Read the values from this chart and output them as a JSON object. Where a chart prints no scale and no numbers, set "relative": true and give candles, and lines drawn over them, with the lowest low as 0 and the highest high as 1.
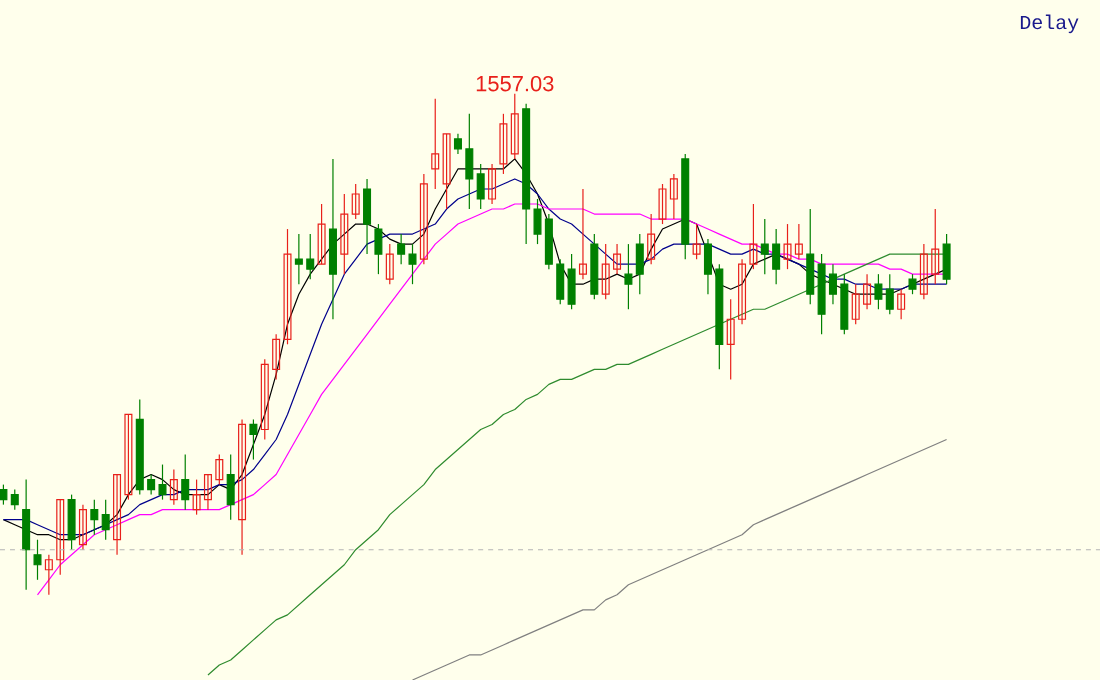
{
  "chart_data": {
    "type": "candlestick",
    "relative": true,
    "categories": [
      null,
      null,
      null,
      null,
      null,
      null,
      null,
      null,
      null,
      null,
      null,
      null,
      null,
      null,
      null,
      null,
      null,
      null,
      null,
      null,
      null,
      null,
      null,
      null,
      null,
      null,
      null,
      null,
      null,
      null,
      null,
      null,
      null,
      null,
      null,
      null,
      null,
      null,
      null,
      null,
      null,
      null,
      null,
      null,
      null,
      null,
      null,
      null,
      null,
      null,
      null,
      null,
      null,
      null,
      null,
      null,
      null,
      null,
      null,
      null,
      null,
      null,
      null,
      null,
      null,
      null,
      null,
      null,
      null,
      null,
      null,
      null,
      null,
      null,
      null,
      null,
      null,
      null,
      null,
      null,
      null,
      null,
      null,
      null
    ],
    "ohlc": [
      [
        0.21,
        0.22,
        0.18,
        0.19
      ],
      [
        0.2,
        0.21,
        0.17,
        0.18
      ],
      [
        0.17,
        0.23,
        0.01,
        0.09
      ],
      [
        0.08,
        0.11,
        0.03,
        0.06
      ],
      [
        0.05,
        0.08,
        0,
        0.07
      ],
      [
        0.07,
        0.19,
        0.04,
        0.19
      ],
      [
        0.19,
        0.2,
        0.09,
        0.11
      ],
      [
        0.1,
        0.18,
        0.09,
        0.17
      ],
      [
        0.17,
        0.19,
        0.12,
        0.15
      ],
      [
        0.16,
        0.19,
        0.11,
        0.13
      ],
      [
        0.11,
        0.24,
        0.08,
        0.24
      ],
      [
        0.2,
        0.36,
        0.19,
        0.36
      ],
      [
        0.35,
        0.39,
        0.2,
        0.21
      ],
      [
        0.23,
        0.24,
        0.2,
        0.21
      ],
      [
        0.22,
        0.26,
        0.19,
        0.2
      ],
      [
        0.19,
        0.25,
        0.18,
        0.23
      ],
      [
        0.23,
        0.28,
        0.17,
        0.19
      ],
      [
        0.17,
        0.23,
        0.16,
        0.2
      ],
      [
        0.19,
        0.24,
        0.17,
        0.24
      ],
      [
        0.23,
        0.28,
        0.22,
        0.27
      ],
      [
        0.24,
        0.28,
        0.15,
        0.18
      ],
      [
        0.15,
        0.35,
        0.08,
        0.34
      ],
      [
        0.34,
        0.35,
        0.27,
        0.32
      ],
      [
        0.33,
        0.47,
        0.31,
        0.46
      ],
      [
        0.45,
        0.52,
        0.43,
        0.51
      ],
      [
        0.51,
        0.73,
        0.5,
        0.68
      ],
      [
        0.67,
        0.72,
        0.62,
        0.66
      ],
      [
        0.67,
        0.72,
        0.63,
        0.65
      ],
      [
        0.66,
        0.78,
        0.66,
        0.74
      ],
      [
        0.73,
        0.87,
        0.55,
        0.64
      ],
      [
        0.68,
        0.8,
        0.64,
        0.76
      ],
      [
        0.76,
        0.82,
        0.75,
        0.8
      ],
      [
        0.81,
        0.83,
        0.68,
        0.74
      ],
      [
        0.73,
        0.74,
        0.64,
        0.68
      ],
      [
        0.63,
        0.7,
        0.62,
        0.68
      ],
      [
        0.7,
        0.72,
        0.66,
        0.68
      ],
      [
        0.68,
        0.7,
        0.62,
        0.66
      ],
      [
        0.67,
        0.84,
        0.66,
        0.82
      ],
      [
        0.85,
        0.99,
        0.81,
        0.88
      ],
      [
        0.82,
        0.92,
        0.77,
        0.92
      ],
      [
        0.91,
        0.92,
        0.88,
        0.89
      ],
      [
        0.89,
        0.96,
        0.77,
        0.83
      ],
      [
        0.84,
        0.86,
        0.77,
        0.79
      ],
      [
        0.79,
        0.86,
        0.78,
        0.85
      ],
      [
        0.86,
        0.96,
        0.84,
        0.94
      ],
      [
        0.88,
        1,
        0.87,
        0.96
      ],
      [
        0.97,
        0.98,
        0.7,
        0.77
      ],
      [
        0.77,
        0.79,
        0.7,
        0.72
      ],
      [
        0.75,
        0.76,
        0.65,
        0.66
      ],
      [
        0.66,
        0.67,
        0.58,
        0.59
      ],
      [
        0.65,
        0.68,
        0.57,
        0.58
      ],
      [
        0.64,
        0.81,
        0.63,
        0.66
      ],
      [
        0.7,
        0.72,
        0.59,
        0.6
      ],
      [
        0.6,
        0.7,
        0.59,
        0.66
      ],
      [
        0.65,
        0.7,
        0.64,
        0.68
      ],
      [
        0.64,
        0.7,
        0.57,
        0.62
      ],
      [
        0.7,
        0.72,
        0.6,
        0.64
      ],
      [
        0.67,
        0.76,
        0.66,
        0.72
      ],
      [
        0.75,
        0.82,
        0.74,
        0.81
      ],
      [
        0.79,
        0.84,
        0.75,
        0.83
      ],
      [
        0.87,
        0.88,
        0.67,
        0.7
      ],
      [
        0.68,
        0.74,
        0.67,
        0.7
      ],
      [
        0.7,
        0.71,
        0.6,
        0.64
      ],
      [
        0.65,
        0.66,
        0.45,
        0.5
      ],
      [
        0.5,
        0.59,
        0.43,
        0.55
      ],
      [
        0.55,
        0.67,
        0.54,
        0.66
      ],
      [
        0.66,
        0.78,
        0.65,
        0.7
      ],
      [
        0.7,
        0.75,
        0.64,
        0.68
      ],
      [
        0.7,
        0.73,
        0.62,
        0.65
      ],
      [
        0.67,
        0.74,
        0.65,
        0.7
      ],
      [
        0.68,
        0.74,
        0.67,
        0.7
      ],
      [
        0.68,
        0.77,
        0.58,
        0.6
      ],
      [
        0.66,
        0.68,
        0.52,
        0.56
      ],
      [
        0.64,
        0.66,
        0.58,
        0.6
      ],
      [
        0.62,
        0.64,
        0.52,
        0.53
      ],
      [
        0.55,
        0.62,
        0.54,
        0.6
      ],
      [
        0.58,
        0.64,
        0.57,
        0.62
      ],
      [
        0.62,
        0.64,
        0.57,
        0.59
      ],
      [
        0.61,
        0.64,
        0.56,
        0.57
      ],
      [
        0.57,
        0.61,
        0.55,
        0.6
      ],
      [
        0.63,
        0.64,
        0.6,
        0.61
      ],
      [
        0.6,
        0.7,
        0.59,
        0.68
      ],
      [
        0.64,
        0.77,
        0.62,
        0.69
      ],
      [
        0.7,
        0.72,
        0.62,
        0.63
      ]
    ],
    "colors": [
      "#008000",
      "#008000",
      "#008000",
      "#008000",
      "#e8201a",
      "#e8201a",
      "#008000",
      "#e8201a",
      "#008000",
      "#008000",
      "#e8201a",
      "#e8201a",
      "#008000",
      "#008000",
      "#008000",
      "#e8201a",
      "#008000",
      "#e8201a",
      "#e8201a",
      "#e8201a",
      "#008000",
      "#e8201a",
      "#008000",
      "#e8201a",
      "#e8201a",
      "#e8201a",
      "#008000",
      "#008000",
      "#e8201a",
      "#008000",
      "#e8201a",
      "#e8201a",
      "#008000",
      "#008000",
      "#e8201a",
      "#008000",
      "#008000",
      "#e8201a",
      "#e8201a",
      "#e8201a",
      "#008000",
      "#008000",
      "#008000",
      "#e8201a",
      "#e8201a",
      "#e8201a",
      "#008000",
      "#008000",
      "#008000",
      "#008000",
      "#008000",
      "#e8201a",
      "#008000",
      "#e8201a",
      "#e8201a",
      "#008000",
      "#008000",
      "#e8201a",
      "#e8201a",
      "#e8201a",
      "#008000",
      "#e8201a",
      "#008000",
      "#008000",
      "#e8201a",
      "#e8201a",
      "#e8201a",
      "#008000",
      "#008000",
      "#e8201a",
      "#e8201a",
      "#008000",
      "#008000",
      "#008000",
      "#008000",
      "#e8201a",
      "#e8201a",
      "#008000",
      "#008000",
      "#e8201a",
      "#008000",
      "#e8201a",
      "#e8201a",
      "#008000"
    ],
    "series": [
      {
        "type": "line",
        "color": "#000000",
        "values": [
          0.15,
          0.14,
          0.13,
          0.12,
          0.12,
          0.11,
          0.11,
          0.12,
          0.13,
          0.14,
          0.16,
          0.2,
          0.23,
          0.24,
          0.23,
          0.21,
          0.2,
          0.2,
          0.2,
          0.22,
          0.21,
          0.24,
          0.3,
          0.36,
          0.44,
          0.54,
          0.6,
          0.64,
          0.67,
          0.7,
          0.72,
          0.74,
          0.74,
          0.73,
          0.71,
          0.7,
          0.7,
          0.72,
          0.77,
          0.81,
          0.85,
          0.85,
          0.85,
          0.85,
          0.85,
          0.87,
          0.84,
          0.8,
          0.74,
          0.66,
          0.62,
          0.62,
          0.63,
          0.63,
          0.64,
          0.63,
          0.64,
          0.69,
          0.73,
          0.74,
          0.75,
          0.74,
          0.68,
          0.62,
          0.61,
          0.62,
          0.66,
          0.67,
          0.68,
          0.67,
          0.66,
          0.64,
          0.63,
          0.62,
          0.61,
          0.6,
          0.6,
          0.6,
          0.6,
          0.61,
          0.62,
          0.63,
          0.64,
          0.65
        ]
      },
      {
        "type": "line",
        "color": "#00008b",
        "values": [
          0.15,
          0.15,
          0.15,
          0.14,
          0.13,
          0.12,
          0.12,
          0.12,
          0.13,
          0.14,
          0.15,
          0.16,
          0.18,
          0.19,
          0.2,
          0.2,
          0.21,
          0.21,
          0.21,
          0.22,
          0.22,
          0.23,
          0.25,
          0.28,
          0.31,
          0.36,
          0.42,
          0.48,
          0.54,
          0.59,
          0.64,
          0.67,
          0.7,
          0.71,
          0.72,
          0.72,
          0.72,
          0.73,
          0.74,
          0.77,
          0.79,
          0.8,
          0.81,
          0.81,
          0.82,
          0.83,
          0.82,
          0.8,
          0.77,
          0.75,
          0.74,
          0.72,
          0.7,
          0.68,
          0.66,
          0.66,
          0.66,
          0.67,
          0.69,
          0.7,
          0.7,
          0.7,
          0.7,
          0.69,
          0.68,
          0.68,
          0.69,
          0.68,
          0.68,
          0.67,
          0.66,
          0.65,
          0.64,
          0.63,
          0.63,
          0.62,
          0.62,
          0.61,
          0.61,
          0.61,
          0.62,
          0.62,
          0.62,
          0.62
        ]
      },
      {
        "type": "line",
        "color": "#ff00ff",
        "values": [
          null,
          null,
          null,
          0.0,
          0.03,
          0.06,
          0.08,
          0.1,
          0.12,
          0.13,
          0.14,
          0.15,
          0.16,
          0.16,
          0.17,
          0.17,
          0.17,
          0.17,
          0.17,
          0.17,
          0.18,
          0.19,
          0.2,
          0.22,
          0.24,
          0.28,
          0.32,
          0.36,
          0.4,
          0.43,
          0.46,
          0.49,
          0.52,
          0.55,
          0.58,
          0.61,
          0.64,
          0.67,
          0.7,
          0.72,
          0.74,
          0.75,
          0.76,
          0.77,
          0.77,
          0.78,
          0.78,
          0.78,
          0.77,
          0.77,
          0.77,
          0.77,
          0.76,
          0.76,
          0.76,
          0.76,
          0.76,
          0.75,
          0.75,
          0.75,
          0.75,
          0.74,
          0.73,
          0.72,
          0.71,
          0.7,
          0.7,
          0.69,
          0.68,
          0.68,
          0.67,
          0.67,
          0.66,
          0.66,
          0.66,
          0.66,
          0.66,
          0.66,
          0.65,
          0.65,
          0.64,
          0.64,
          0.64,
          0.64
        ]
      },
      {
        "type": "line",
        "color": "#2e8b2e",
        "values": [
          null,
          null,
          null,
          null,
          null,
          null,
          null,
          null,
          null,
          null,
          null,
          null,
          null,
          null,
          null,
          null,
          null,
          null,
          -0.16,
          -0.14,
          -0.13,
          -0.11,
          -0.09,
          -0.07,
          -0.05,
          -0.04,
          -0.02,
          0.0,
          0.02,
          0.04,
          0.06,
          0.09,
          0.11,
          0.13,
          0.16,
          0.18,
          0.2,
          0.22,
          0.25,
          0.27,
          0.29,
          0.31,
          0.33,
          0.34,
          0.36,
          0.37,
          0.39,
          0.4,
          0.42,
          0.43,
          0.43,
          0.44,
          0.45,
          0.45,
          0.46,
          0.46,
          0.47,
          0.48,
          0.49,
          0.5,
          0.51,
          0.52,
          0.53,
          0.54,
          0.55,
          0.56,
          0.57,
          0.57,
          0.58,
          0.59,
          0.6,
          0.61,
          0.62,
          0.63,
          0.64,
          0.65,
          0.66,
          0.67,
          0.68,
          0.68,
          0.68,
          0.68,
          0.68,
          0.68
        ]
      },
      {
        "type": "line",
        "color": "#808080",
        "values": [
          null,
          null,
          null,
          null,
          null,
          null,
          null,
          null,
          null,
          null,
          null,
          null,
          null,
          null,
          null,
          null,
          null,
          null,
          null,
          null,
          null,
          null,
          null,
          null,
          null,
          null,
          null,
          null,
          null,
          null,
          null,
          null,
          null,
          null,
          null,
          null,
          -0.17,
          -0.16,
          -0.15,
          -0.14,
          -0.13,
          -0.12,
          -0.12,
          -0.11,
          -0.1,
          -0.09,
          -0.08,
          -0.07,
          -0.06,
          -0.05,
          -0.04,
          -0.03,
          -0.03,
          -0.01,
          0.0,
          0.02,
          0.03,
          0.04,
          0.05,
          0.06,
          0.07,
          0.08,
          0.09,
          0.1,
          0.11,
          0.12,
          0.14,
          0.15,
          0.16,
          0.17,
          0.18,
          0.19,
          0.2,
          0.21,
          0.22,
          0.23,
          0.24,
          0.25,
          0.26,
          0.27,
          0.28,
          0.29,
          0.3,
          0.31
        ]
      }
    ],
    "ref_lines": [
      {
        "axis": "y",
        "value": 0.09,
        "color": "#b4b4b4",
        "line_style": "dashed"
      }
    ],
    "annotations": [
      {
        "text": "1557.03",
        "y": 1
      },
      "Delay"
    ]
  }
}
